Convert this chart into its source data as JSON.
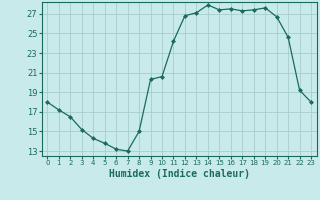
{
  "x": [
    0,
    1,
    2,
    3,
    4,
    5,
    6,
    7,
    8,
    9,
    10,
    11,
    12,
    13,
    14,
    15,
    16,
    17,
    18,
    19,
    20,
    21,
    22,
    23
  ],
  "y": [
    18.0,
    17.2,
    16.5,
    15.2,
    14.3,
    13.8,
    13.2,
    13.0,
    15.0,
    20.3,
    20.6,
    24.2,
    26.8,
    27.1,
    27.9,
    27.4,
    27.5,
    27.3,
    27.4,
    27.6,
    26.7,
    24.6,
    19.2,
    18.0
  ],
  "line_color": "#1a6b5a",
  "marker": "D",
  "marker_size": 2.0,
  "background_color": "#c8eaea",
  "grid_color": "#a8cccc",
  "tick_color": "#1a6b5a",
  "xlabel": "Humidex (Indice chaleur)",
  "xlabel_fontsize": 7,
  "ytick_fontsize": 6,
  "xtick_fontsize": 5,
  "yticks": [
    13,
    15,
    17,
    19,
    21,
    23,
    25,
    27
  ],
  "xticks": [
    0,
    1,
    2,
    3,
    4,
    5,
    6,
    7,
    8,
    9,
    10,
    11,
    12,
    13,
    14,
    15,
    16,
    17,
    18,
    19,
    20,
    21,
    22,
    23
  ],
  "ylim": [
    12.5,
    28.2
  ],
  "xlim": [
    -0.5,
    23.5
  ]
}
